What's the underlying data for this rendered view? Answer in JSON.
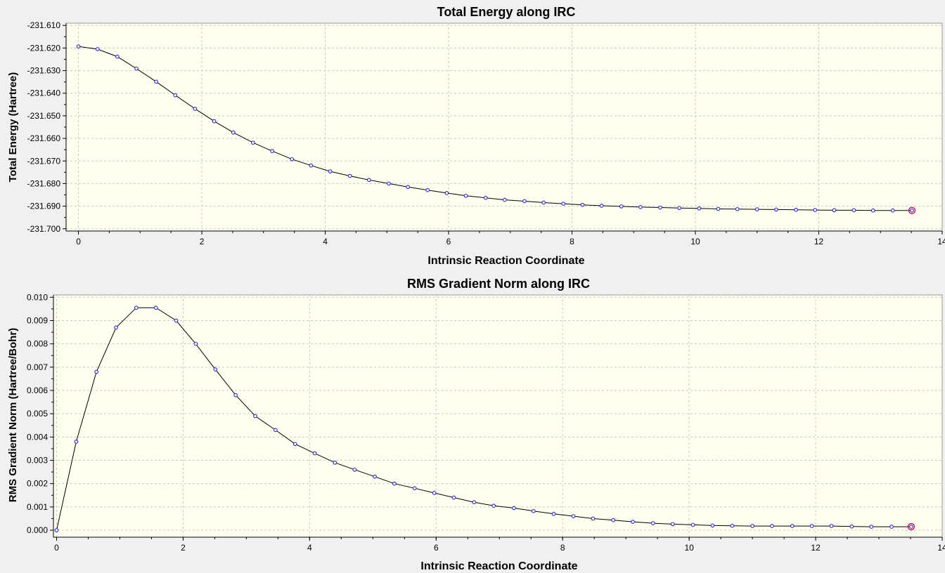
{
  "colors": {
    "plot_background": "#ffffef",
    "window_background": "#f0f0f0",
    "line": "#000000",
    "marker": "#2a2acc",
    "endpoint_marker": "#cc0055"
  },
  "chart_data": [
    {
      "type": "line",
      "title": "Total Energy along IRC",
      "xlabel": "Intrinsic Reaction Coordinate",
      "ylabel": "Total Energy (Hartree)",
      "xlim": [
        -0.2,
        14
      ],
      "ylim": [
        -231.701,
        -231.609
      ],
      "grid": true,
      "x_ticks": [
        "0",
        "2",
        "4",
        "6",
        "8",
        "10",
        "12",
        "14"
      ],
      "y_ticks": [
        "-231.610",
        "-231.620",
        "-231.630",
        "-231.640",
        "-231.650",
        "-231.660",
        "-231.670",
        "-231.680",
        "-231.690",
        "-231.700"
      ],
      "highlight": "last point",
      "series": [
        {
          "x": [
            0,
            0.31,
            0.63,
            0.94,
            1.26,
            1.57,
            1.89,
            2.2,
            2.51,
            2.83,
            3.14,
            3.46,
            3.77,
            4.08,
            4.4,
            4.71,
            5.03,
            5.34,
            5.66,
            5.97,
            6.28,
            6.6,
            6.91,
            7.23,
            7.54,
            7.86,
            8.17,
            8.48,
            8.8,
            9.11,
            9.43,
            9.74,
            10.06,
            10.37,
            10.68,
            11.0,
            11.31,
            11.63,
            11.94,
            12.25,
            12.57,
            12.88,
            13.2,
            13.51
          ],
          "y": [
            -231.6193,
            -231.6205,
            -231.6238,
            -231.6291,
            -231.6349,
            -231.6409,
            -231.6469,
            -231.6524,
            -231.6574,
            -231.6619,
            -231.6656,
            -231.6692,
            -231.672,
            -231.6746,
            -231.6766,
            -231.6784,
            -231.68,
            -231.6815,
            -231.6829,
            -231.6842,
            -231.6854,
            -231.6863,
            -231.6872,
            -231.6878,
            -231.6884,
            -231.6889,
            -231.6894,
            -231.6898,
            -231.6901,
            -231.6904,
            -231.6906,
            -231.6908,
            -231.691,
            -231.6912,
            -231.6913,
            -231.6914,
            -231.6915,
            -231.6916,
            -231.6917,
            -231.6918,
            -231.6918,
            -231.6919,
            -231.6919,
            -231.6919
          ]
        }
      ]
    },
    {
      "type": "line",
      "title": "RMS Gradient Norm along IRC",
      "xlabel": "Intrinsic Reaction Coordinate",
      "ylabel": "RMS Gradient Norm (Hartree/Bohr)",
      "xlim": [
        -0.05,
        14
      ],
      "ylim": [
        -0.0003,
        0.0101
      ],
      "grid": true,
      "x_ticks": [
        "0",
        "2",
        "4",
        "6",
        "8",
        "10",
        "12",
        "14"
      ],
      "y_ticks": [
        "0.000",
        "0.001",
        "0.002",
        "0.003",
        "0.004",
        "0.005",
        "0.006",
        "0.007",
        "0.008",
        "0.009",
        "0.010"
      ],
      "highlight": "last point",
      "series": [
        {
          "x": [
            0,
            0.31,
            0.63,
            0.94,
            1.26,
            1.57,
            1.89,
            2.2,
            2.51,
            2.83,
            3.14,
            3.46,
            3.77,
            4.08,
            4.4,
            4.71,
            5.03,
            5.34,
            5.66,
            5.97,
            6.28,
            6.6,
            6.91,
            7.23,
            7.54,
            7.86,
            8.17,
            8.48,
            8.8,
            9.11,
            9.43,
            9.74,
            10.06,
            10.37,
            10.68,
            11.0,
            11.31,
            11.63,
            11.94,
            12.25,
            12.57,
            12.88,
            13.2,
            13.51
          ],
          "y": [
            0.0,
            0.0038,
            0.0068,
            0.0087,
            0.00955,
            0.00955,
            0.009,
            0.008,
            0.0069,
            0.0058,
            0.0049,
            0.0043,
            0.0037,
            0.0033,
            0.0029,
            0.0026,
            0.0023,
            0.002,
            0.0018,
            0.0016,
            0.0014,
            0.0012,
            0.00105,
            0.00095,
            0.00082,
            0.0007,
            0.0006,
            0.0005,
            0.00043,
            0.00036,
            0.0003,
            0.00026,
            0.00023,
            0.0002,
            0.00019,
            0.00018,
            0.00018,
            0.00018,
            0.00018,
            0.00018,
            0.00016,
            0.00015,
            0.00015,
            0.00015
          ]
        }
      ]
    }
  ]
}
